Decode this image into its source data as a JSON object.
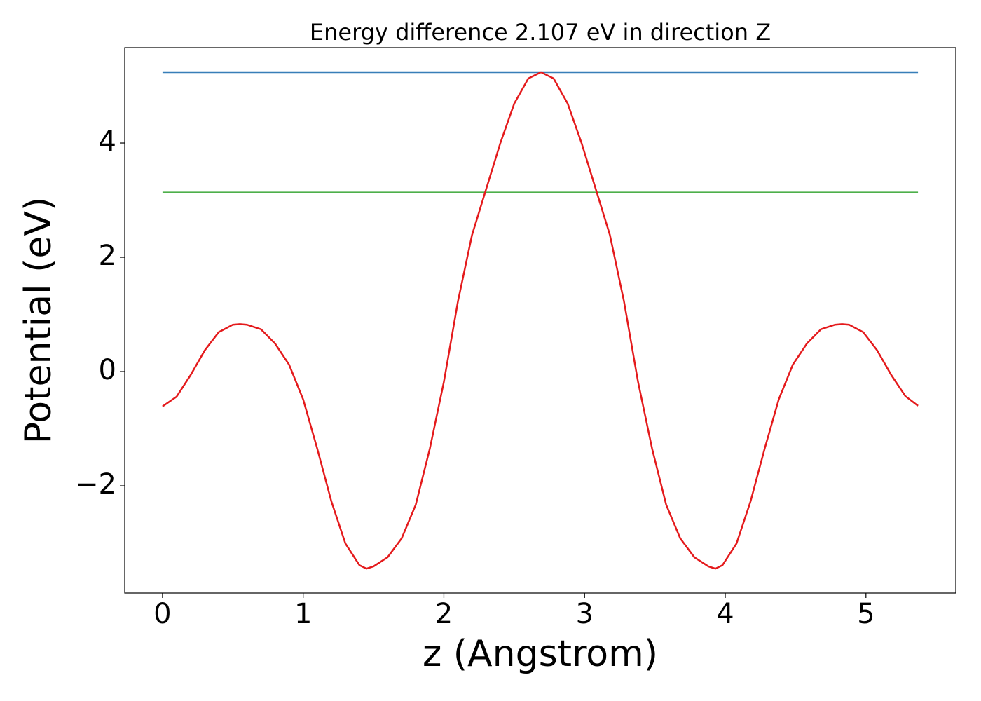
{
  "chart_data": {
    "type": "line",
    "title": "Energy difference 2.107 eV in direction Z",
    "xlabel": "z (Angstrom)",
    "ylabel": "Potential (eV)",
    "xlim": [
      -0.2685,
      5.6385
    ],
    "ylim": [
      -3.877,
      5.669
    ],
    "xticks": [
      0,
      1,
      2,
      3,
      4,
      5
    ],
    "yticks": [
      {
        "value": -2,
        "label": "−2"
      },
      0,
      2,
      4
    ],
    "series": [
      {
        "color": "#377eb8",
        "x": [
          0,
          5.37
        ],
        "values": [
          5.24,
          5.24
        ]
      },
      {
        "color": "#4daf4a",
        "x": [
          0,
          5.37
        ],
        "values": [
          3.133,
          3.133
        ]
      },
      {
        "color": "#e41a1c",
        "x": [
          0,
          0.1,
          0.2,
          0.3,
          0.4,
          0.5,
          0.55,
          0.6,
          0.7,
          0.8,
          0.9,
          1.0,
          1.1,
          1.2,
          1.3,
          1.4,
          1.45,
          1.5,
          1.6,
          1.7,
          1.8,
          1.9,
          2.0,
          2.1,
          2.2,
          2.3,
          2.4,
          2.5,
          2.6,
          2.69,
          2.78,
          2.88,
          2.98,
          3.08,
          3.18,
          3.28,
          3.38,
          3.48,
          3.58,
          3.68,
          3.78,
          3.88,
          3.93,
          3.98,
          4.08,
          4.18,
          4.28,
          4.38,
          4.48,
          4.58,
          4.68,
          4.78,
          4.83,
          4.88,
          4.98,
          5.08,
          5.18,
          5.28,
          5.37
        ],
        "values": [
          -0.61,
          -0.44,
          -0.06,
          0.37,
          0.69,
          0.82,
          0.83,
          0.82,
          0.74,
          0.49,
          0.12,
          -0.49,
          -1.35,
          -2.27,
          -3.01,
          -3.39,
          -3.45,
          -3.41,
          -3.25,
          -2.92,
          -2.33,
          -1.35,
          -0.18,
          1.23,
          2.39,
          3.19,
          3.99,
          4.69,
          5.13,
          5.24,
          5.13,
          4.69,
          3.99,
          3.19,
          2.39,
          1.23,
          -0.18,
          -1.35,
          -2.33,
          -2.92,
          -3.25,
          -3.41,
          -3.45,
          -3.39,
          -3.01,
          -2.27,
          -1.35,
          -0.49,
          0.12,
          0.49,
          0.74,
          0.82,
          0.83,
          0.82,
          0.69,
          0.37,
          -0.06,
          -0.43,
          -0.6
        ]
      }
    ]
  }
}
